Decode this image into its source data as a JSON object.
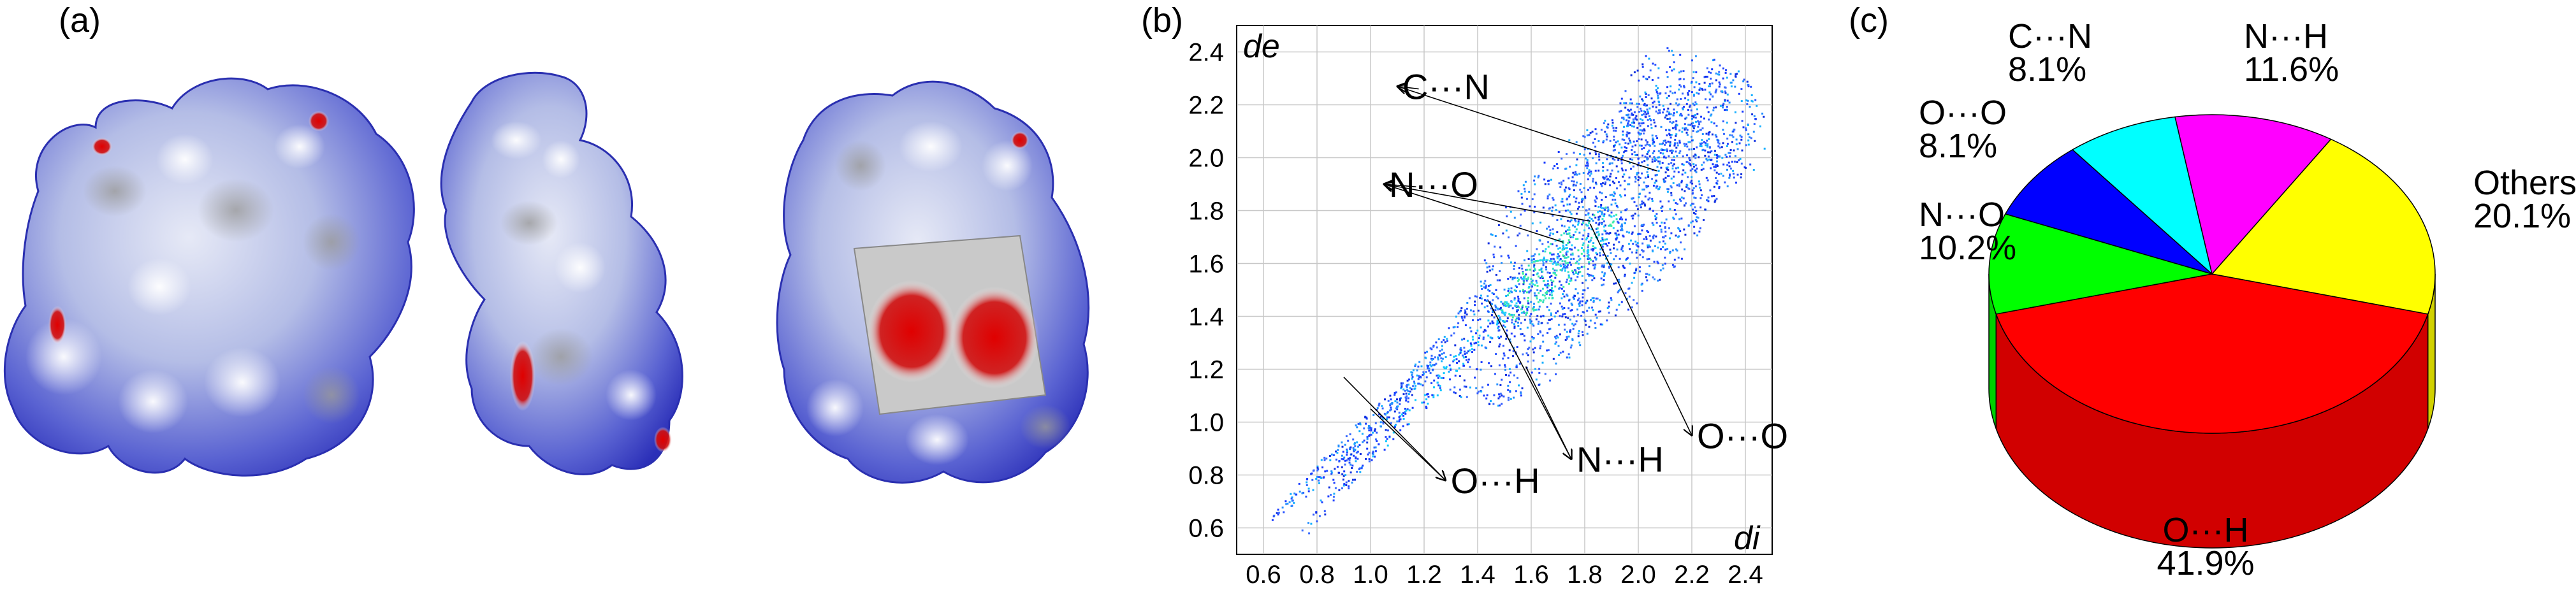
{
  "panels": {
    "a": {
      "label": "(a)"
    },
    "b": {
      "label": "(b)"
    },
    "c": {
      "label": "(c)"
    }
  },
  "chart_data": [
    {
      "type": "scatter",
      "panel": "(b)",
      "title": "",
      "xlabel": "di",
      "ylabel": "de",
      "xlim": [
        0.5,
        2.5
      ],
      "ylim": [
        0.5,
        2.5
      ],
      "x_ticks": [
        "0.6",
        "0.8",
        "1.0",
        "1.2",
        "1.4",
        "1.6",
        "1.8",
        "2.0",
        "2.2",
        "2.4"
      ],
      "y_ticks": [
        "0.6",
        "0.8",
        "1.0",
        "1.2",
        "1.4",
        "1.6",
        "1.8",
        "2.0",
        "2.2",
        "2.4"
      ],
      "grid": true,
      "annotations": [
        {
          "label": "C···N",
          "at": [
            1.1,
            2.27
          ],
          "targets": [
            [
              1.18,
              2.26
            ],
            [
              2.07,
              1.95
            ]
          ]
        },
        {
          "label": "N···O",
          "at": [
            1.05,
            1.9
          ],
          "targets": [
            [
              1.17,
              1.89
            ],
            [
              1.72,
              1.68
            ],
            [
              1.82,
              1.76
            ]
          ]
        },
        {
          "label": "O···O",
          "at": [
            2.2,
            0.95
          ],
          "targets": [
            [
              1.82,
              1.75
            ]
          ]
        },
        {
          "label": "N···H",
          "at": [
            1.75,
            0.86
          ],
          "targets": [
            [
              1.44,
              1.46
            ],
            [
              1.58,
              1.21
            ]
          ]
        },
        {
          "label": "O···H",
          "at": [
            1.28,
            0.78
          ],
          "targets": [
            [
              0.9,
              1.17
            ],
            [
              1.0,
              1.05
            ]
          ]
        }
      ]
    },
    {
      "type": "pie",
      "panel": "(c)",
      "title": "",
      "slices": [
        {
          "label": "O···H",
          "value": 41.9,
          "value_label": "41.9%",
          "color": "#ff0000"
        },
        {
          "label": "N···O",
          "value": 10.2,
          "value_label": "10.2%",
          "color": "#00ff00"
        },
        {
          "label": "O···O",
          "value": 8.1,
          "value_label": "8.1%",
          "color": "#0000ff"
        },
        {
          "label": "C···N",
          "value": 8.1,
          "value_label": "8.1%",
          "color": "#00ffff"
        },
        {
          "label": "N···H",
          "value": 11.6,
          "value_label": "11.6%",
          "color": "#ff00ff"
        },
        {
          "label": "Others",
          "value": 20.1,
          "value_label": "20.1%",
          "color": "#ffff00"
        }
      ]
    }
  ]
}
